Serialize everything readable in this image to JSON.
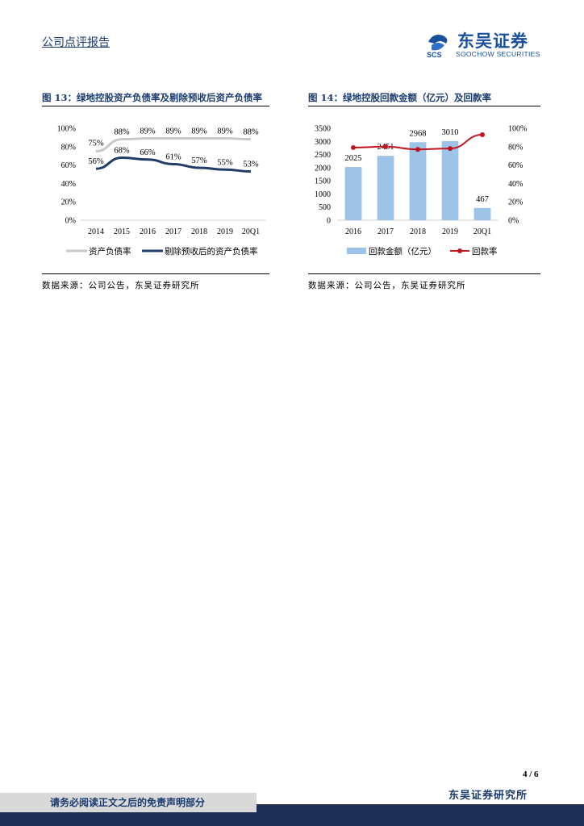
{
  "header": {
    "report_type": "公司点评报告",
    "logo_cn": "东吴证券",
    "logo_en": "SOOCHOW SECURITIES",
    "logo_mark_text": "SCS",
    "brand_color": "#1a4f9c"
  },
  "figure13": {
    "title": "图 13：绿地控股资产负债率及剔除预收后资产负债率",
    "source": "数据来源：公司公告，东吴证券研究所"
  },
  "figure14": {
    "title": "图 14：绿地控股回款金额（亿元）及回款率",
    "source": "数据来源：公司公告，东吴证券研究所"
  },
  "chart_data": [
    {
      "type": "line",
      "title": "绿地控股资产负债率及剔除预收后资产负债率",
      "categories": [
        "2014",
        "2015",
        "2016",
        "2017",
        "2018",
        "2019",
        "20Q1"
      ],
      "y_ticks": [
        "0%",
        "20%",
        "40%",
        "60%",
        "80%",
        "100%"
      ],
      "ylim": [
        0,
        100
      ],
      "series": [
        {
          "name": "资产负债率",
          "color": "#c8c8c8",
          "values": [
            75,
            88,
            89,
            89,
            89,
            89,
            88
          ],
          "labels": [
            "75%",
            "88%",
            "89%",
            "89%",
            "89%",
            "89%",
            "88%"
          ]
        },
        {
          "name": "剔除预收后的资产负债率",
          "color": "#1f3d66",
          "values": [
            56,
            68,
            66,
            61,
            57,
            55,
            53
          ],
          "labels": [
            "56%",
            "68%",
            "66%",
            "61%",
            "57%",
            "55%",
            "53%"
          ]
        }
      ],
      "legend": "bottom"
    },
    {
      "type": "bar+line",
      "title": "绿地控股回款金额（亿元）及回款率",
      "categories": [
        "2016",
        "2017",
        "2018",
        "2019",
        "20Q1"
      ],
      "bar_series": {
        "name": "回款金额（亿元）",
        "color": "#9dc3e6",
        "values": [
          2025,
          2451,
          2968,
          3010,
          467
        ],
        "labels": [
          "2025",
          "2451",
          "2968",
          "3010",
          "467"
        ]
      },
      "line_series": {
        "name": "回款率",
        "color": "#c0141e",
        "values": [
          79,
          80,
          77,
          78,
          93
        ]
      },
      "y_left_ticks": [
        "0",
        "500",
        "1000",
        "1500",
        "2000",
        "2500",
        "3000",
        "3500"
      ],
      "y_left_lim": [
        0,
        3500
      ],
      "y_right_ticks": [
        "0%",
        "20%",
        "40%",
        "60%",
        "80%",
        "100%"
      ],
      "y_right_lim": [
        0,
        100
      ],
      "legend": "bottom"
    }
  ],
  "footer": {
    "page": "4 / 6",
    "firm": "东吴证券研究所",
    "notice": "请务必阅读正文之后的免责声明部分"
  }
}
